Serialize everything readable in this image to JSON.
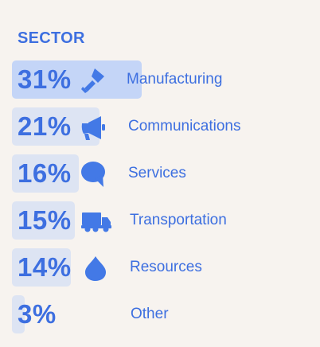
{
  "colors": {
    "background": "#f7f3ef",
    "text": "#3d6fe0",
    "bar_top": "#c4d5f7",
    "bar_other": "#dde4f3",
    "icon": "#4379e6"
  },
  "chart_data": {
    "type": "bar",
    "orientation": "horizontal",
    "title": "SECTOR",
    "xlabel": "",
    "ylabel": "",
    "unit": "%",
    "categories": [
      "Manufacturing",
      "Communications",
      "Services",
      "Transportation",
      "Resources",
      "Other"
    ],
    "values": [
      31,
      21,
      16,
      15,
      14,
      3
    ],
    "value_labels": [
      "31%",
      "21%",
      "16%",
      "15%",
      "14%",
      "3%"
    ],
    "icons": [
      "shovel-icon",
      "megaphone-icon",
      "speech-bubble-icon",
      "truck-icon",
      "drop-icon",
      ""
    ],
    "grid": false,
    "legend": "none"
  }
}
